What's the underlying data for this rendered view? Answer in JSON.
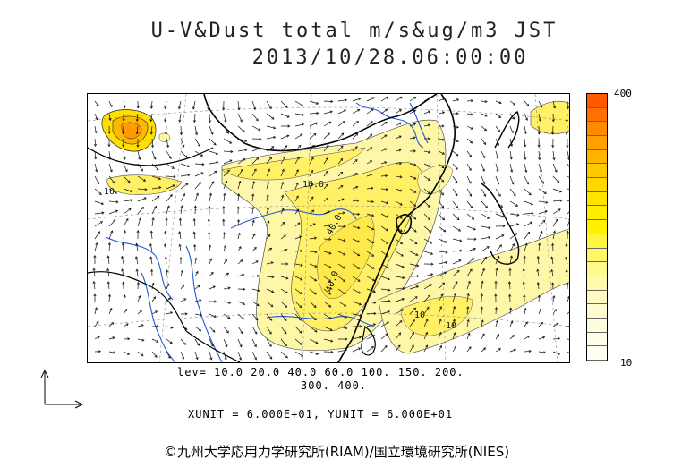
{
  "title": {
    "line1": "U-V&Dust total m/s&ug/m3 JST",
    "line2": "2013/10/28.06:00:00"
  },
  "colorbar": {
    "max_label": "400",
    "min_label": "10",
    "colors": [
      "#ff5a00",
      "#ff7000",
      "#ff8a00",
      "#ffa000",
      "#ffb400",
      "#ffc800",
      "#ffd800",
      "#ffe400",
      "#ffee00",
      "#fff200",
      "#fff540",
      "#fff766",
      "#fff88a",
      "#fffaa8",
      "#fffbc0",
      "#fffcd2",
      "#fffde0",
      "#fffeea",
      "#fffff2"
    ]
  },
  "contour_labels": [
    "10.0",
    "40.0",
    "40.0",
    "10",
    "10",
    "10"
  ],
  "levels": {
    "line1": "lev= 10.0 20.0 40.0 60.0 100. 150. 200.",
    "line2": "300. 400."
  },
  "units": "XUNIT = 6.000E+01, YUNIT = 6.000E+01",
  "copyright": "©九州大学応用力学研究所(RIAM)/国立環境研究所(NIES)",
  "colors": {
    "dust_light": "#fff7a8",
    "dust_mid": "#fff066",
    "dust_orange": "#ff9a00",
    "coast": "#000000",
    "river": "#1e5ad6",
    "grid": "#888888"
  }
}
